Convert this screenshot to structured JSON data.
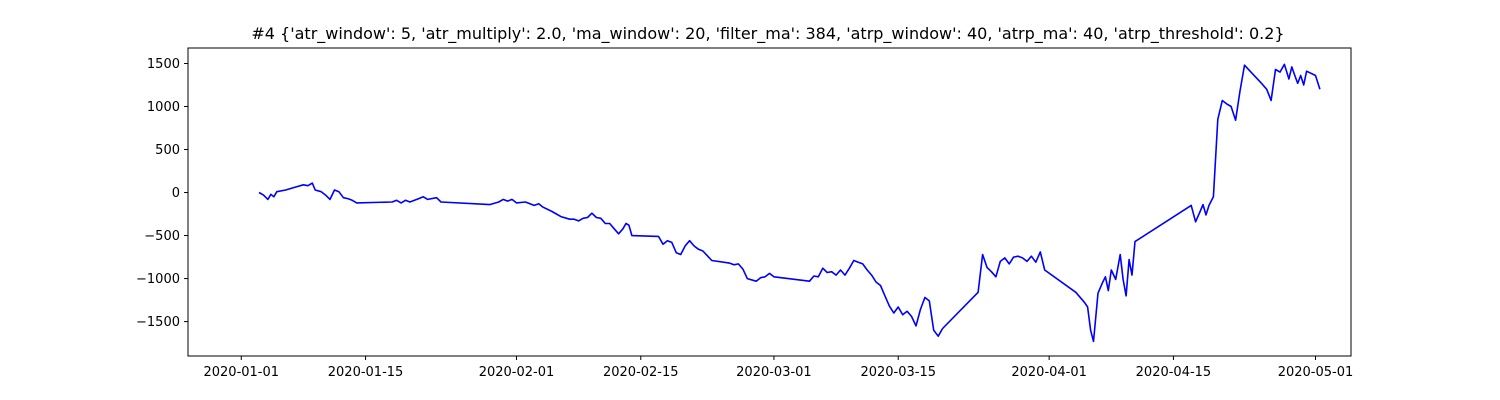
{
  "chart_data": {
    "type": "line",
    "title": "#4 {'atr_window': 5, 'atr_multiply': 2.0, 'ma_window': 20, 'filter_ma': 384, 'atrp_window': 40, 'atrp_ma': 40, 'atrp_threshold': 0.2}",
    "xlabel": "",
    "ylabel": "",
    "xlim": [
      "2019-12-26",
      "2020-05-05"
    ],
    "ylim": [
      -1900,
      1680
    ],
    "x_ticks": [
      "2020-01-01",
      "2020-01-15",
      "2020-02-01",
      "2020-02-15",
      "2020-03-01",
      "2020-03-15",
      "2020-04-01",
      "2020-04-15",
      "2020-05-01"
    ],
    "y_ticks": [
      -1500,
      -1000,
      -500,
      0,
      500,
      1000,
      1500
    ],
    "grid": false,
    "line_color": "#0000ff",
    "series": [
      {
        "points": [
          [
            "2020-01-03",
            0
          ],
          [
            "2020-01-03T12",
            -30
          ],
          [
            "2020-01-04",
            -80
          ],
          [
            "2020-01-04T08",
            -20
          ],
          [
            "2020-01-04T16",
            -50
          ],
          [
            "2020-01-05",
            10
          ],
          [
            "2020-01-06",
            30
          ],
          [
            "2020-01-07",
            60
          ],
          [
            "2020-01-08",
            90
          ],
          [
            "2020-01-08T12",
            80
          ],
          [
            "2020-01-09",
            110
          ],
          [
            "2020-01-09T08",
            30
          ],
          [
            "2020-01-10",
            10
          ],
          [
            "2020-01-10T12",
            -30
          ],
          [
            "2020-01-11",
            -80
          ],
          [
            "2020-01-11T12",
            30
          ],
          [
            "2020-01-12",
            10
          ],
          [
            "2020-01-12T12",
            -60
          ],
          [
            "2020-01-13",
            -70
          ],
          [
            "2020-01-13T12",
            -90
          ],
          [
            "2020-01-14",
            -120
          ],
          [
            "2020-01-18",
            -110
          ],
          [
            "2020-01-18T12",
            -90
          ],
          [
            "2020-01-19",
            -120
          ],
          [
            "2020-01-19T12",
            -90
          ],
          [
            "2020-01-20",
            -110
          ],
          [
            "2020-01-21",
            -70
          ],
          [
            "2020-01-21T12",
            -50
          ],
          [
            "2020-01-22",
            -80
          ],
          [
            "2020-01-23",
            -60
          ],
          [
            "2020-01-23T12",
            -110
          ],
          [
            "2020-01-29",
            -140
          ],
          [
            "2020-01-30",
            -110
          ],
          [
            "2020-01-30T12",
            -80
          ],
          [
            "2020-01-31",
            -100
          ],
          [
            "2020-01-31T12",
            -80
          ],
          [
            "2020-02-01",
            -120
          ],
          [
            "2020-02-02",
            -110
          ],
          [
            "2020-02-03",
            -150
          ],
          [
            "2020-02-03T12",
            -130
          ],
          [
            "2020-02-04",
            -170
          ],
          [
            "2020-02-05",
            -220
          ],
          [
            "2020-02-05T12",
            -250
          ],
          [
            "2020-02-06",
            -280
          ],
          [
            "2020-02-07",
            -310
          ],
          [
            "2020-02-07T12",
            -310
          ],
          [
            "2020-02-08",
            -330
          ],
          [
            "2020-02-08T12",
            -300
          ],
          [
            "2020-02-09",
            -290
          ],
          [
            "2020-02-09T12",
            -240
          ],
          [
            "2020-02-10",
            -290
          ],
          [
            "2020-02-10T12",
            -300
          ],
          [
            "2020-02-11",
            -360
          ],
          [
            "2020-02-11T12",
            -360
          ],
          [
            "2020-02-12",
            -420
          ],
          [
            "2020-02-12T12",
            -480
          ],
          [
            "2020-02-13",
            -420
          ],
          [
            "2020-02-13T08",
            -360
          ],
          [
            "2020-02-13T16",
            -380
          ],
          [
            "2020-02-14",
            -500
          ],
          [
            "2020-02-17",
            -510
          ],
          [
            "2020-02-17T12",
            -600
          ],
          [
            "2020-02-18",
            -560
          ],
          [
            "2020-02-18T12",
            -580
          ],
          [
            "2020-02-19",
            -700
          ],
          [
            "2020-02-19T12",
            -720
          ],
          [
            "2020-02-20",
            -620
          ],
          [
            "2020-02-20T12",
            -560
          ],
          [
            "2020-02-21",
            -620
          ],
          [
            "2020-02-21T12",
            -660
          ],
          [
            "2020-02-22",
            -680
          ],
          [
            "2020-02-23",
            -790
          ],
          [
            "2020-02-25",
            -820
          ],
          [
            "2020-02-25T12",
            -840
          ],
          [
            "2020-02-26",
            -830
          ],
          [
            "2020-02-26T12",
            -890
          ],
          [
            "2020-02-27",
            -1000
          ],
          [
            "2020-02-28",
            -1030
          ],
          [
            "2020-02-28T12",
            -990
          ],
          [
            "2020-02-29",
            -980
          ],
          [
            "2020-02-29T12",
            -940
          ],
          [
            "2020-03-01",
            -980
          ],
          [
            "2020-03-05",
            -1030
          ],
          [
            "2020-03-05T12",
            -970
          ],
          [
            "2020-03-06",
            -980
          ],
          [
            "2020-03-06T12",
            -880
          ],
          [
            "2020-03-07",
            -930
          ],
          [
            "2020-03-07T12",
            -920
          ],
          [
            "2020-03-08",
            -960
          ],
          [
            "2020-03-08T12",
            -900
          ],
          [
            "2020-03-09",
            -960
          ],
          [
            "2020-03-09T12",
            -880
          ],
          [
            "2020-03-10",
            -790
          ],
          [
            "2020-03-10T12",
            -810
          ],
          [
            "2020-03-11",
            -830
          ],
          [
            "2020-03-11T12",
            -900
          ],
          [
            "2020-03-12",
            -960
          ],
          [
            "2020-03-12T12",
            -1040
          ],
          [
            "2020-03-13",
            -1080
          ],
          [
            "2020-03-13T12",
            -1200
          ],
          [
            "2020-03-14",
            -1320
          ],
          [
            "2020-03-14T12",
            -1400
          ],
          [
            "2020-03-15",
            -1330
          ],
          [
            "2020-03-15T12",
            -1420
          ],
          [
            "2020-03-16",
            -1380
          ],
          [
            "2020-03-16T12",
            -1440
          ],
          [
            "2020-03-17",
            -1550
          ],
          [
            "2020-03-17T12",
            -1360
          ],
          [
            "2020-03-18",
            -1220
          ],
          [
            "2020-03-18T12",
            -1260
          ],
          [
            "2020-03-19",
            -1600
          ],
          [
            "2020-03-19T12",
            -1670
          ],
          [
            "2020-03-20",
            -1580
          ],
          [
            "2020-03-24",
            -1160
          ],
          [
            "2020-03-24T12",
            -720
          ],
          [
            "2020-03-25",
            -870
          ],
          [
            "2020-03-25T12",
            -920
          ],
          [
            "2020-03-26",
            -980
          ],
          [
            "2020-03-26T12",
            -800
          ],
          [
            "2020-03-27",
            -760
          ],
          [
            "2020-03-27T12",
            -830
          ],
          [
            "2020-03-28",
            -750
          ],
          [
            "2020-03-28T12",
            -740
          ],
          [
            "2020-03-29",
            -760
          ],
          [
            "2020-03-29T12",
            -800
          ],
          [
            "2020-03-30",
            -740
          ],
          [
            "2020-03-30T12",
            -810
          ],
          [
            "2020-03-31",
            -690
          ],
          [
            "2020-03-31T12",
            -900
          ],
          [
            "2020-04-04",
            -1160
          ],
          [
            "2020-04-05",
            -1280
          ],
          [
            "2020-04-05T08",
            -1330
          ],
          [
            "2020-04-05T16",
            -1600
          ],
          [
            "2020-04-06",
            -1730
          ],
          [
            "2020-04-06T12",
            -1170
          ],
          [
            "2020-04-07",
            -1050
          ],
          [
            "2020-04-07T08",
            -980
          ],
          [
            "2020-04-07T16",
            -1140
          ],
          [
            "2020-04-08",
            -900
          ],
          [
            "2020-04-08T12",
            -1010
          ],
          [
            "2020-04-09",
            -720
          ],
          [
            "2020-04-09T08",
            -1010
          ],
          [
            "2020-04-09T16",
            -1200
          ],
          [
            "2020-04-10",
            -780
          ],
          [
            "2020-04-10T08",
            -960
          ],
          [
            "2020-04-10T16",
            -570
          ],
          [
            "2020-04-17",
            -150
          ],
          [
            "2020-04-17T12",
            -340
          ],
          [
            "2020-04-18",
            -220
          ],
          [
            "2020-04-18T08",
            -140
          ],
          [
            "2020-04-18T16",
            -260
          ],
          [
            "2020-04-19",
            -150
          ],
          [
            "2020-04-19T12",
            -50
          ],
          [
            "2020-04-20",
            850
          ],
          [
            "2020-04-20T12",
            1070
          ],
          [
            "2020-04-21",
            1030
          ],
          [
            "2020-04-21T12",
            1000
          ],
          [
            "2020-04-22",
            840
          ],
          [
            "2020-04-22T12",
            1180
          ],
          [
            "2020-04-23",
            1480
          ],
          [
            "2020-04-25",
            1260
          ],
          [
            "2020-04-25T12",
            1200
          ],
          [
            "2020-04-26",
            1070
          ],
          [
            "2020-04-26T12",
            1430
          ],
          [
            "2020-04-27",
            1400
          ],
          [
            "2020-04-27T12",
            1490
          ],
          [
            "2020-04-28",
            1320
          ],
          [
            "2020-04-28T08",
            1460
          ],
          [
            "2020-04-28T16",
            1360
          ],
          [
            "2020-04-29",
            1270
          ],
          [
            "2020-04-29T08",
            1360
          ],
          [
            "2020-04-29T16",
            1250
          ],
          [
            "2020-04-30",
            1410
          ],
          [
            "2020-05-01",
            1360
          ],
          [
            "2020-05-01T12",
            1200
          ]
        ]
      }
    ]
  }
}
